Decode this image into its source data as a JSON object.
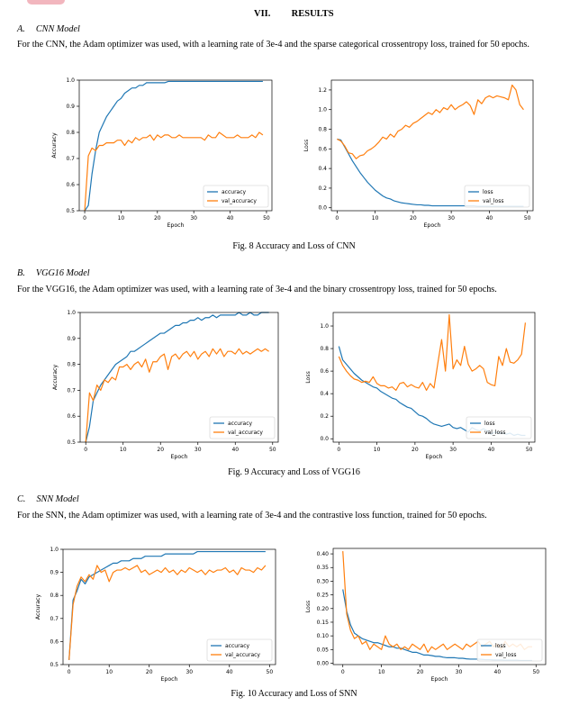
{
  "section": {
    "number": "VII.",
    "title": "RESULTS"
  },
  "subsections": [
    {
      "label": "A.",
      "title": "CNN Model",
      "text": "For the CNN, the Adam optimizer was used, with a learning rate of 3e-4 and the sparse categorical crossentropy loss, trained for 50 epochs.",
      "caption": "Fig. 8 Accuracy and Loss of CNN"
    },
    {
      "label": "B.",
      "title": "VGG16 Model",
      "text": "For the VGG16, the Adam optimizer was used, with a learning rate of 3e-4 and the binary crossentropy loss, trained for 50 epochs.",
      "caption": "Fig. 9 Accuracy and Loss of VGG16"
    },
    {
      "label": "C.",
      "title": "SNN Model",
      "text": "For the SNN, the Adam optimizer was used, with a learning rate of 3e-4 and the contrastive loss function, trained for 50 epochs.",
      "caption": "Fig. 10 Accuracy and Loss of SNN"
    }
  ],
  "colors": {
    "train": "#1f77b4",
    "val": "#ff7f0e"
  },
  "chart_data": [
    {
      "type": "line",
      "xlabel": "Epoch",
      "ylabel": "Accuracy",
      "xlim": [
        -1.5,
        51.5
      ],
      "ylim": [
        0.5,
        1.0
      ],
      "xticks": [
        0,
        10,
        20,
        30,
        40,
        50
      ],
      "yticks": [
        0.5,
        0.6,
        0.7,
        0.8,
        0.9,
        1.0
      ],
      "ytick_labels": [
        "0.5",
        "0.6",
        "0.7",
        "0.8",
        "0.9",
        "1.0"
      ],
      "legend": "lower-right",
      "series": [
        {
          "name": "accuracy",
          "values": [
            0.5,
            0.52,
            0.64,
            0.73,
            0.8,
            0.83,
            0.86,
            0.88,
            0.9,
            0.92,
            0.93,
            0.95,
            0.96,
            0.97,
            0.97,
            0.98,
            0.98,
            0.99,
            0.99,
            0.99,
            0.99,
            0.99,
            0.99,
            0.995,
            0.995,
            0.995,
            0.995,
            0.995,
            0.995,
            0.995,
            0.995,
            0.995,
            0.995,
            0.995,
            0.995,
            0.995,
            0.995,
            0.995,
            0.995,
            0.995,
            0.995,
            0.995,
            0.995,
            0.995,
            0.995,
            0.995,
            0.995,
            0.995,
            0.995,
            0.995
          ]
        },
        {
          "name": "val_accuracy",
          "values": [
            0.5,
            0.71,
            0.74,
            0.73,
            0.75,
            0.75,
            0.76,
            0.76,
            0.76,
            0.77,
            0.77,
            0.75,
            0.77,
            0.76,
            0.78,
            0.77,
            0.78,
            0.78,
            0.79,
            0.77,
            0.79,
            0.78,
            0.79,
            0.79,
            0.78,
            0.78,
            0.79,
            0.78,
            0.78,
            0.78,
            0.78,
            0.78,
            0.78,
            0.77,
            0.79,
            0.78,
            0.78,
            0.8,
            0.79,
            0.78,
            0.78,
            0.78,
            0.79,
            0.78,
            0.78,
            0.78,
            0.79,
            0.78,
            0.8,
            0.79
          ]
        }
      ]
    },
    {
      "type": "line",
      "xlabel": "Epoch",
      "ylabel": "Loss",
      "xlim": [
        -1.5,
        51.5
      ],
      "ylim": [
        -0.03,
        1.3
      ],
      "xticks": [
        0,
        10,
        20,
        30,
        40,
        50
      ],
      "yticks": [
        0.0,
        0.2,
        0.4,
        0.6,
        0.8,
        1.0,
        1.2
      ],
      "ytick_labels": [
        "0.0",
        "0.2",
        "0.4",
        "0.6",
        "0.8",
        "1.0",
        "1.2"
      ],
      "legend": "lower-right",
      "series": [
        {
          "name": "loss",
          "values": [
            0.7,
            0.69,
            0.62,
            0.55,
            0.48,
            0.42,
            0.36,
            0.31,
            0.26,
            0.22,
            0.18,
            0.15,
            0.12,
            0.1,
            0.09,
            0.07,
            0.06,
            0.05,
            0.045,
            0.04,
            0.035,
            0.03,
            0.03,
            0.025,
            0.025,
            0.02,
            0.02,
            0.02,
            0.02,
            0.02,
            0.02,
            0.02,
            0.02,
            0.02,
            0.02,
            0.02,
            0.02,
            0.015,
            0.015,
            0.015,
            0.015,
            0.015,
            0.015,
            0.015,
            0.015,
            0.015,
            0.015,
            0.015,
            0.015,
            0.015
          ]
        },
        {
          "name": "val_loss",
          "values": [
            0.7,
            0.68,
            0.63,
            0.56,
            0.55,
            0.5,
            0.53,
            0.54,
            0.58,
            0.6,
            0.63,
            0.67,
            0.72,
            0.7,
            0.75,
            0.72,
            0.78,
            0.8,
            0.84,
            0.82,
            0.86,
            0.88,
            0.91,
            0.94,
            0.97,
            0.95,
            1.0,
            0.97,
            1.02,
            1.0,
            1.05,
            1.0,
            1.03,
            1.05,
            1.08,
            1.04,
            0.95,
            1.1,
            1.06,
            1.12,
            1.14,
            1.12,
            1.14,
            1.13,
            1.12,
            1.1,
            1.25,
            1.2,
            1.05,
            1.0
          ]
        }
      ]
    },
    {
      "type": "line",
      "xlabel": "Epoch",
      "ylabel": "Accuracy",
      "xlim": [
        -1.5,
        51.5
      ],
      "ylim": [
        0.5,
        1.0
      ],
      "xticks": [
        0,
        10,
        20,
        30,
        40,
        50
      ],
      "yticks": [
        0.5,
        0.6,
        0.7,
        0.8,
        0.9,
        1.0
      ],
      "ytick_labels": [
        "0.5",
        "0.6",
        "0.7",
        "0.8",
        "0.9",
        "1.0"
      ],
      "legend": "lower-right",
      "series": [
        {
          "name": "accuracy",
          "values": [
            0.5,
            0.56,
            0.66,
            0.69,
            0.72,
            0.74,
            0.76,
            0.78,
            0.8,
            0.81,
            0.82,
            0.83,
            0.85,
            0.85,
            0.86,
            0.87,
            0.88,
            0.89,
            0.9,
            0.91,
            0.92,
            0.92,
            0.93,
            0.94,
            0.95,
            0.95,
            0.96,
            0.96,
            0.97,
            0.97,
            0.98,
            0.97,
            0.98,
            0.98,
            0.99,
            0.98,
            0.99,
            0.99,
            0.99,
            0.99,
            0.99,
            1.0,
            0.99,
            0.99,
            1.0,
            0.99,
            0.99,
            1.0,
            1.0,
            1.0
          ]
        },
        {
          "name": "val_accuracy",
          "values": [
            0.5,
            0.69,
            0.66,
            0.72,
            0.7,
            0.74,
            0.73,
            0.75,
            0.74,
            0.79,
            0.79,
            0.8,
            0.78,
            0.8,
            0.81,
            0.79,
            0.82,
            0.77,
            0.81,
            0.81,
            0.83,
            0.84,
            0.78,
            0.83,
            0.84,
            0.82,
            0.84,
            0.85,
            0.83,
            0.85,
            0.82,
            0.84,
            0.85,
            0.83,
            0.86,
            0.84,
            0.86,
            0.83,
            0.85,
            0.85,
            0.84,
            0.86,
            0.84,
            0.85,
            0.84,
            0.85,
            0.86,
            0.85,
            0.86,
            0.85
          ]
        }
      ]
    },
    {
      "type": "line",
      "xlabel": "Epoch",
      "ylabel": "Loss",
      "xlim": [
        -1.5,
        51.5
      ],
      "ylim": [
        -0.03,
        1.12
      ],
      "xticks": [
        0,
        10,
        20,
        30,
        40,
        50
      ],
      "yticks": [
        0.0,
        0.2,
        0.4,
        0.6,
        0.8,
        1.0
      ],
      "ytick_labels": [
        "0.0",
        "0.2",
        "0.4",
        "0.6",
        "0.8",
        "1.0"
      ],
      "legend": "lower-right",
      "series": [
        {
          "name": "loss",
          "values": [
            0.82,
            0.7,
            0.66,
            0.62,
            0.58,
            0.55,
            0.52,
            0.5,
            0.48,
            0.46,
            0.45,
            0.42,
            0.4,
            0.38,
            0.36,
            0.35,
            0.32,
            0.3,
            0.28,
            0.27,
            0.24,
            0.21,
            0.2,
            0.18,
            0.15,
            0.13,
            0.12,
            0.11,
            0.12,
            0.13,
            0.1,
            0.09,
            0.1,
            0.08,
            0.06,
            0.1,
            0.08,
            0.07,
            0.09,
            0.07,
            0.04,
            0.06,
            0.05,
            0.05,
            0.04,
            0.05,
            0.03,
            0.04,
            0.03,
            0.03
          ]
        },
        {
          "name": "val_loss",
          "values": [
            0.73,
            0.65,
            0.6,
            0.56,
            0.53,
            0.52,
            0.5,
            0.51,
            0.5,
            0.55,
            0.49,
            0.47,
            0.47,
            0.45,
            0.46,
            0.43,
            0.49,
            0.5,
            0.46,
            0.48,
            0.46,
            0.45,
            0.5,
            0.43,
            0.49,
            0.45,
            0.67,
            0.88,
            0.6,
            1.1,
            0.62,
            0.7,
            0.65,
            0.82,
            0.66,
            0.6,
            0.62,
            0.65,
            0.62,
            0.5,
            0.48,
            0.47,
            0.73,
            0.65,
            0.8,
            0.68,
            0.67,
            0.7,
            0.75,
            1.03
          ]
        }
      ]
    },
    {
      "type": "line",
      "xlabel": "Epoch",
      "ylabel": "Accuracy",
      "xlim": [
        -1.5,
        51.5
      ],
      "ylim": [
        0.5,
        1.0
      ],
      "xticks": [
        0,
        10,
        20,
        30,
        40,
        50
      ],
      "yticks": [
        0.5,
        0.6,
        0.7,
        0.8,
        0.9,
        1.0
      ],
      "ytick_labels": [
        "0.5",
        "0.6",
        "0.7",
        "0.8",
        "0.9",
        "1.0"
      ],
      "legend": "lower-right",
      "series": [
        {
          "name": "accuracy",
          "values": [
            0.52,
            0.78,
            0.82,
            0.87,
            0.85,
            0.88,
            0.89,
            0.9,
            0.91,
            0.92,
            0.93,
            0.94,
            0.94,
            0.95,
            0.95,
            0.95,
            0.96,
            0.96,
            0.96,
            0.97,
            0.97,
            0.97,
            0.97,
            0.97,
            0.98,
            0.98,
            0.98,
            0.98,
            0.98,
            0.98,
            0.98,
            0.98,
            0.99,
            0.99,
            0.99,
            0.99,
            0.99,
            0.99,
            0.99,
            0.99,
            0.99,
            0.99,
            0.99,
            0.99,
            0.99,
            0.99,
            0.99,
            0.99,
            0.99,
            0.99
          ]
        },
        {
          "name": "val_accuracy",
          "values": [
            0.52,
            0.76,
            0.84,
            0.88,
            0.86,
            0.89,
            0.87,
            0.93,
            0.9,
            0.91,
            0.86,
            0.9,
            0.91,
            0.91,
            0.92,
            0.91,
            0.92,
            0.93,
            0.9,
            0.91,
            0.89,
            0.9,
            0.91,
            0.9,
            0.92,
            0.9,
            0.91,
            0.89,
            0.91,
            0.9,
            0.92,
            0.91,
            0.9,
            0.91,
            0.89,
            0.91,
            0.9,
            0.91,
            0.91,
            0.92,
            0.9,
            0.91,
            0.89,
            0.92,
            0.91,
            0.91,
            0.9,
            0.92,
            0.91,
            0.93
          ]
        }
      ]
    },
    {
      "type": "line",
      "xlabel": "Epoch",
      "ylabel": "Loss",
      "xlim": [
        -2.5,
        52.5
      ],
      "ylim": [
        -0.005,
        0.42
      ],
      "xticks": [
        0,
        10,
        20,
        30,
        40,
        50
      ],
      "yticks": [
        0.0,
        0.05,
        0.1,
        0.15,
        0.2,
        0.25,
        0.3,
        0.35,
        0.4
      ],
      "ytick_labels": [
        "0.00",
        "0.05",
        "0.10",
        "0.15",
        "0.20",
        "0.25",
        "0.30",
        "0.35",
        "0.40"
      ],
      "legend": "lower-right",
      "series": [
        {
          "name": "loss",
          "values": [
            0.27,
            0.19,
            0.14,
            0.11,
            0.1,
            0.09,
            0.085,
            0.08,
            0.075,
            0.075,
            0.07,
            0.065,
            0.06,
            0.06,
            0.055,
            0.055,
            0.05,
            0.045,
            0.04,
            0.04,
            0.035,
            0.03,
            0.03,
            0.028,
            0.025,
            0.025,
            0.022,
            0.02,
            0.02,
            0.02,
            0.018,
            0.018,
            0.016,
            0.015,
            0.015,
            0.015,
            0.014,
            0.013,
            0.013,
            0.012,
            0.012,
            0.012,
            0.011,
            0.011,
            0.011,
            0.011,
            0.01,
            0.01,
            0.01,
            0.01
          ]
        },
        {
          "name": "val_loss",
          "values": [
            0.41,
            0.18,
            0.12,
            0.09,
            0.1,
            0.07,
            0.08,
            0.05,
            0.07,
            0.06,
            0.05,
            0.1,
            0.07,
            0.06,
            0.07,
            0.05,
            0.06,
            0.05,
            0.07,
            0.06,
            0.05,
            0.07,
            0.04,
            0.06,
            0.05,
            0.06,
            0.07,
            0.05,
            0.06,
            0.07,
            0.06,
            0.05,
            0.07,
            0.06,
            0.07,
            0.08,
            0.06,
            0.07,
            0.08,
            0.06,
            0.07,
            0.05,
            0.08,
            0.06,
            0.07,
            0.06,
            0.07,
            0.05,
            0.06,
            0.06
          ]
        }
      ]
    }
  ]
}
